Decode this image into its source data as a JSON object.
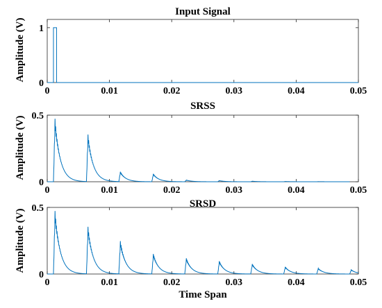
{
  "chart_data": [
    {
      "type": "line",
      "title": "Input Signal",
      "xlabel": "",
      "ylabel": "Amplitude (V)",
      "xlim": [
        0,
        0.05
      ],
      "ylim": [
        0,
        1.15
      ],
      "x_ticks": [
        "0",
        "0.01",
        "0.02",
        "0.03",
        "0.04",
        "0.05"
      ],
      "y_ticks": [
        "0",
        "1"
      ],
      "series": [
        {
          "x": [
            0,
            0.001,
            0.001,
            0.0015,
            0.0015,
            0.05
          ],
          "values": [
            0,
            0,
            1,
            1,
            0,
            0
          ]
        }
      ]
    },
    {
      "type": "line",
      "title": "SRSS",
      "xlabel": "",
      "ylabel": "Amplitude (V)",
      "xlim": [
        0,
        0.05
      ],
      "ylim": [
        0,
        0.5
      ],
      "x_ticks": [
        "0",
        "0.01",
        "0.02",
        "0.03",
        "0.04",
        "0.05"
      ],
      "y_ticks": [
        "0",
        "0.5"
      ],
      "pulse_onsets": [
        0.001,
        0.0063,
        0.0115,
        0.0168,
        0.0221,
        0.0274,
        0.0327,
        0.038,
        0.0433
      ],
      "pulse_peaks": [
        0.44,
        0.33,
        0.07,
        0.055,
        0.012,
        0.008,
        0.004,
        0.002,
        0.001
      ]
    },
    {
      "type": "line",
      "title": "SRSD",
      "xlabel": "Time Span",
      "ylabel": "Amplitude (V)",
      "xlim": [
        0,
        0.05
      ],
      "ylim": [
        0,
        0.5
      ],
      "x_ticks": [
        "0",
        "0.01",
        "0.02",
        "0.03",
        "0.04",
        "0.05"
      ],
      "y_ticks": [
        "0",
        "0.5"
      ],
      "pulse_onsets": [
        0.001,
        0.0063,
        0.0115,
        0.0168,
        0.0221,
        0.0274,
        0.0327,
        0.038,
        0.0433,
        0.0486
      ],
      "pulse_peaks": [
        0.44,
        0.33,
        0.23,
        0.14,
        0.11,
        0.09,
        0.07,
        0.05,
        0.04,
        0.03
      ]
    }
  ],
  "colors": {
    "trace": "#0072BD",
    "axis": "#262626"
  }
}
